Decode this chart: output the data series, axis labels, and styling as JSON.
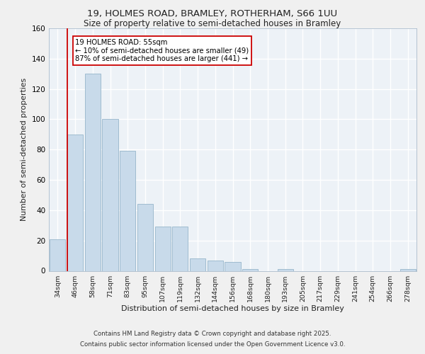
{
  "title_line1": "19, HOLMES ROAD, BRAMLEY, ROTHERHAM, S66 1UU",
  "title_line2": "Size of property relative to semi-detached houses in Bramley",
  "xlabel": "Distribution of semi-detached houses by size in Bramley",
  "ylabel": "Number of semi-detached properties",
  "categories": [
    "34sqm",
    "46sqm",
    "58sqm",
    "71sqm",
    "83sqm",
    "95sqm",
    "107sqm",
    "119sqm",
    "132sqm",
    "144sqm",
    "156sqm",
    "168sqm",
    "180sqm",
    "193sqm",
    "205sqm",
    "217sqm",
    "229sqm",
    "241sqm",
    "254sqm",
    "266sqm",
    "278sqm"
  ],
  "values": [
    21,
    90,
    130,
    100,
    79,
    44,
    29,
    29,
    8,
    7,
    6,
    1,
    0,
    1,
    0,
    0,
    0,
    0,
    0,
    0,
    1
  ],
  "bar_color": "#c8daea",
  "bar_edge_color": "#a0bcd0",
  "highlight_bar_idx": 1,
  "highlight_line_color": "#cc0000",
  "annotation_text": "19 HOLMES ROAD: 55sqm\n← 10% of semi-detached houses are smaller (49)\n87% of semi-detached houses are larger (441) →",
  "annotation_box_color": "#ffffff",
  "annotation_box_edge": "#cc0000",
  "ylim": [
    0,
    160
  ],
  "yticks": [
    0,
    20,
    40,
    60,
    80,
    100,
    120,
    140,
    160
  ],
  "background_color": "#edf2f7",
  "grid_color": "#ffffff",
  "footer_line1": "Contains HM Land Registry data © Crown copyright and database right 2025.",
  "footer_line2": "Contains public sector information licensed under the Open Government Licence v3.0."
}
